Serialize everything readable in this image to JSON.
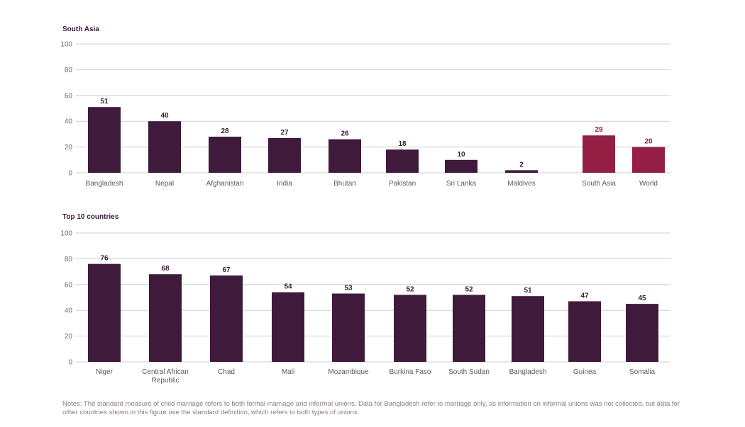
{
  "chart_data": [
    {
      "type": "bar",
      "title": "South Asia",
      "ylim": [
        0,
        100
      ],
      "yticks": [
        "0",
        "20",
        "40",
        "60",
        "80",
        "100"
      ],
      "categories": [
        "Bangladesh",
        "Nepal",
        "Afghanistan",
        "India",
        "Bhutan",
        "Pakistan",
        "Sri Lanka",
        "Maldives",
        "South Asia",
        "World"
      ],
      "values": [
        51,
        40,
        28,
        27,
        26,
        18,
        10,
        2,
        29,
        20
      ],
      "colors": [
        "#3f1a3b",
        "#3f1a3b",
        "#3f1a3b",
        "#3f1a3b",
        "#3f1a3b",
        "#3f1a3b",
        "#3f1a3b",
        "#3f1a3b",
        "#951e45",
        "#951e45"
      ],
      "grid": true
    },
    {
      "type": "bar",
      "title": "Top 10 countries",
      "ylim": [
        0,
        100
      ],
      "yticks": [
        "0",
        "20",
        "40",
        "60",
        "80",
        "100"
      ],
      "categories": [
        "Niger",
        "Central African Republic",
        "Chad",
        "Mali",
        "Mozambique",
        "Burkina Faso",
        "South Sudan",
        "Bangladesh",
        "Guinea",
        "Somalia"
      ],
      "values": [
        76,
        68,
        67,
        54,
        53,
        52,
        52,
        51,
        47,
        45
      ],
      "colors": [
        "#3f1a3b",
        "#3f1a3b",
        "#3f1a3b",
        "#3f1a3b",
        "#3f1a3b",
        "#3f1a3b",
        "#3f1a3b",
        "#3f1a3b",
        "#3f1a3b",
        "#3f1a3b"
      ],
      "grid": true
    }
  ],
  "notes": "Notes: The standard measure of child marriage refers to both formal marriage and informal unions. Data for Bangladesh refer to marriage only, as information on informal unions was not collected, but data for other countries shown in this figure use the standard definition, which refers to both types of unions."
}
